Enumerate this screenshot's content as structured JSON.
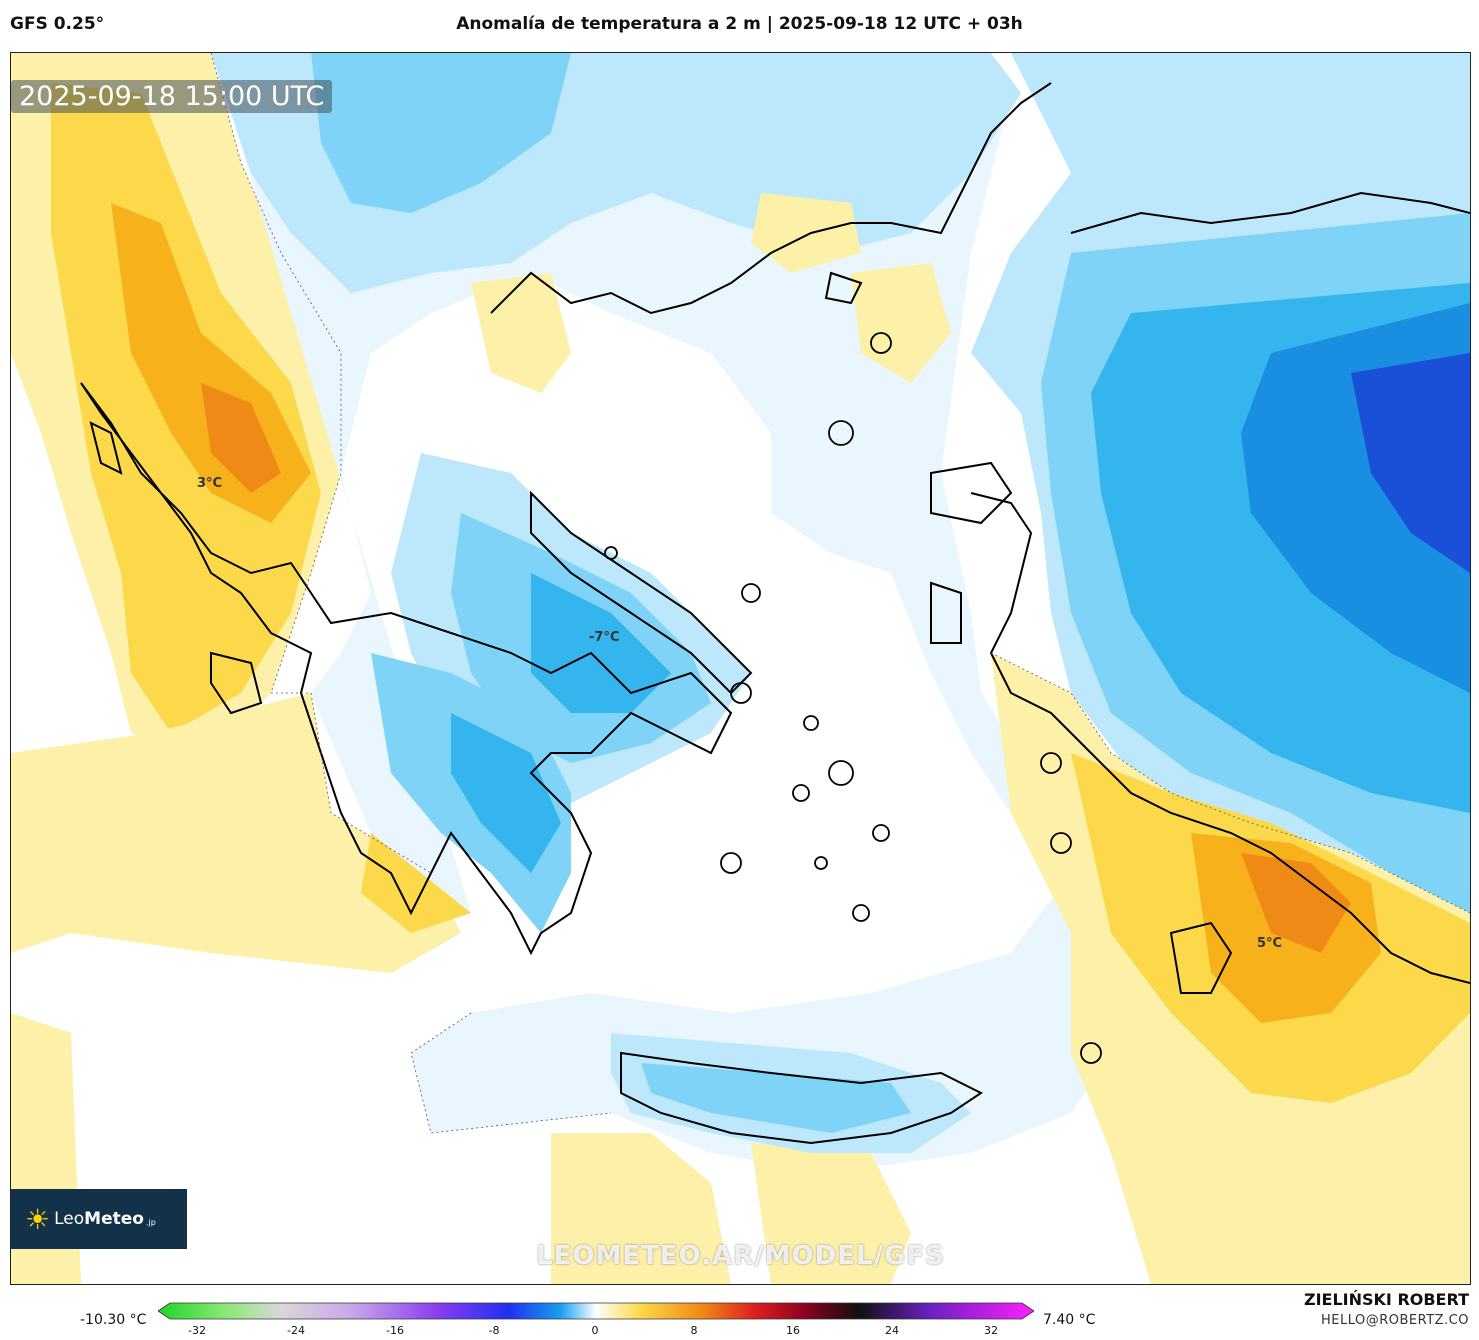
{
  "header": {
    "model": "GFS 0.25°",
    "title": "Anomalía de temperatura a 2 m | 2025-09-18 12 UTC + 03h"
  },
  "map": {
    "timestamp": "2025-09-18 15:00 UTC",
    "watermark": "LEOMETEO.AR/MODEL/GFS",
    "labels": {
      "west": "3°C",
      "central": "-7°C",
      "southeast": "5°C"
    },
    "logo": {
      "brand_light": "Leo",
      "brand_bold": "Meteo",
      "suffix": ".jp"
    },
    "colors": {
      "warm_light": "#fdf0a8",
      "warm_mid": "#fcd94a",
      "warm_strong": "#f7b21b",
      "warm_peak": "#f08a16",
      "cool_faint": "#e9f6fd",
      "cool_light": "#bde8fb",
      "cool_mid": "#7fd3f7",
      "cool_strong": "#35b5ee",
      "cool_deep": "#1a8ee0",
      "cool_peak": "#1a4fd8"
    }
  },
  "colorbar": {
    "min_label": "-10.30 °C",
    "max_label": "7.40 °C",
    "ticks": [
      "-32",
      "-24",
      "-16",
      "-8",
      "0",
      "8",
      "16",
      "24",
      "32"
    ]
  },
  "footer": {
    "author": "ZIELIŃSKI ROBERT",
    "email": "HELLO@ROBERTZ.CO"
  }
}
